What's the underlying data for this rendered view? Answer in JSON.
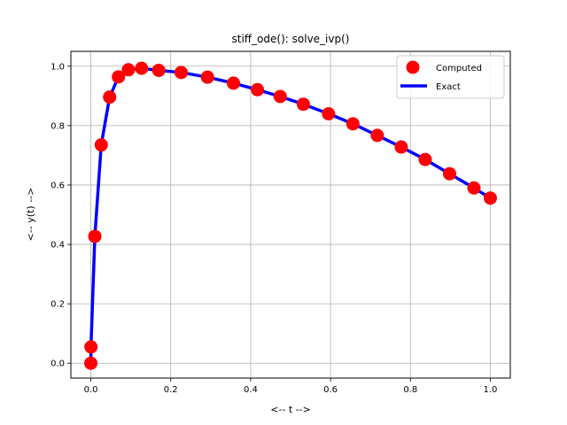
{
  "chart_data": {
    "type": "line",
    "title": "stiff_ode(): solve_ivp()",
    "xlabel": "<-- t -->",
    "ylabel": "<-- y(t) -->",
    "xlim": [
      -0.05,
      1.05
    ],
    "ylim": [
      -0.05,
      1.05
    ],
    "xticks": [
      0.0,
      0.2,
      0.4,
      0.6,
      0.8,
      1.0
    ],
    "yticks": [
      0.0,
      0.2,
      0.4,
      0.6,
      0.8,
      1.0
    ],
    "xtick_labels": [
      "0.0",
      "0.2",
      "0.4",
      "0.6",
      "0.8",
      "1.0"
    ],
    "ytick_labels": [
      "0.0",
      "0.2",
      "0.4",
      "0.6",
      "0.8",
      "1.0"
    ],
    "grid": true,
    "legend": "top-right",
    "series": [
      {
        "name": "Computed",
        "style": "markers",
        "color": "#ff0000",
        "points": [
          [
            0.0,
            0.0
          ],
          [
            0.0003,
            0.055
          ],
          [
            0.01,
            0.427
          ],
          [
            0.026,
            0.735
          ],
          [
            0.047,
            0.896
          ],
          [
            0.069,
            0.964
          ],
          [
            0.094,
            0.988
          ],
          [
            0.127,
            0.993
          ],
          [
            0.17,
            0.986
          ],
          [
            0.226,
            0.979
          ],
          [
            0.292,
            0.963
          ],
          [
            0.357,
            0.943
          ],
          [
            0.417,
            0.921
          ],
          [
            0.474,
            0.898
          ],
          [
            0.532,
            0.872
          ],
          [
            0.595,
            0.84
          ],
          [
            0.656,
            0.806
          ],
          [
            0.717,
            0.767
          ],
          [
            0.777,
            0.728
          ],
          [
            0.837,
            0.686
          ],
          [
            0.898,
            0.638
          ],
          [
            0.959,
            0.59
          ],
          [
            1.0,
            0.556
          ]
        ]
      },
      {
        "name": "Exact",
        "style": "line",
        "color": "#0000ff"
      }
    ]
  }
}
